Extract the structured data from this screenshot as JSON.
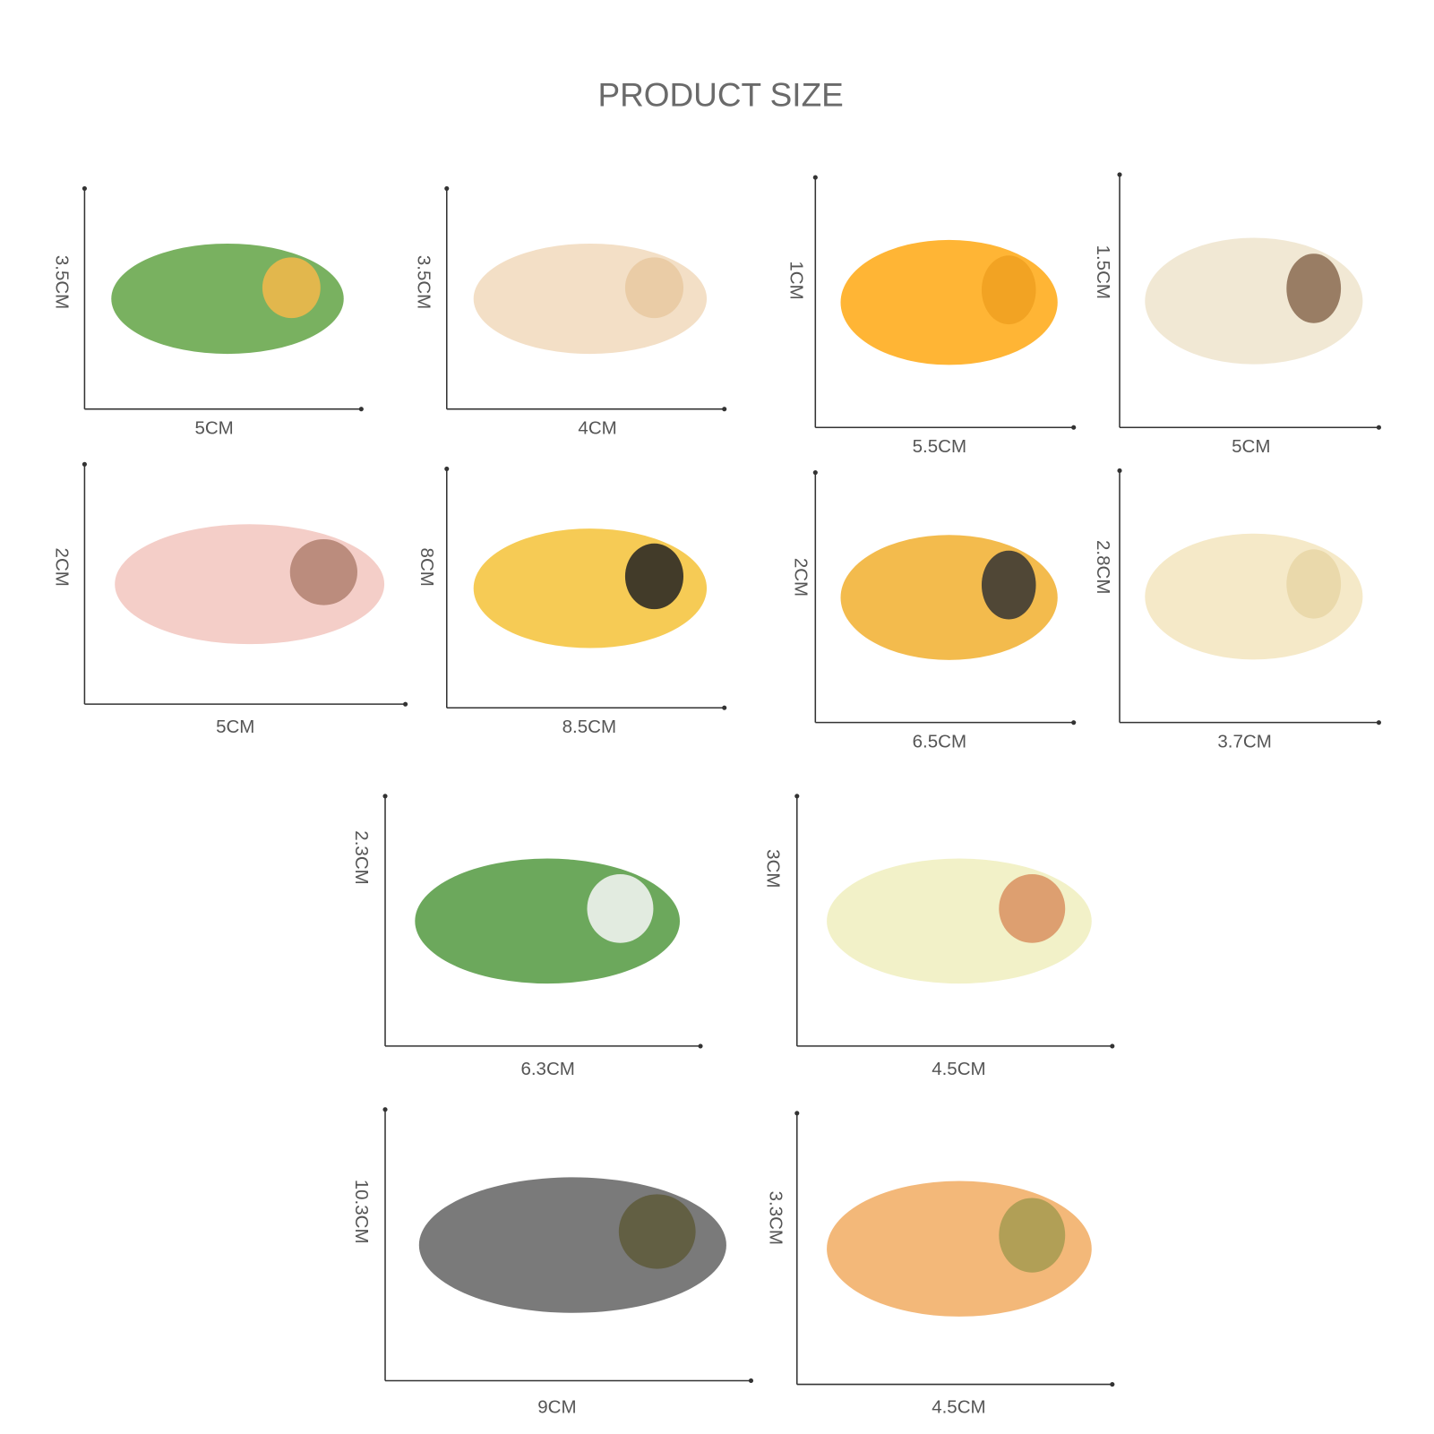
{
  "title": "PRODUCT SIZE",
  "panels": [
    {
      "height": "3.5CM",
      "width": "5CM"
    },
    {
      "height": "3.5CM",
      "width": "4CM"
    },
    {
      "height": "1CM",
      "width": "5.5CM"
    },
    {
      "height": "1.5CM",
      "width": "5CM"
    },
    {
      "height": "2CM",
      "width": "5CM"
    },
    {
      "height": "8CM",
      "width": "8.5CM"
    },
    {
      "height": "2CM",
      "width": "6.5CM"
    },
    {
      "height": "2.8CM",
      "width": "3.7CM"
    },
    {
      "height": "2.3CM",
      "width": "6.3CM"
    },
    {
      "height": "3CM",
      "width": "4.5CM"
    },
    {
      "height": "10.3CM",
      "width": "9CM"
    },
    {
      "height": "3.3CM",
      "width": "4.5CM"
    }
  ]
}
